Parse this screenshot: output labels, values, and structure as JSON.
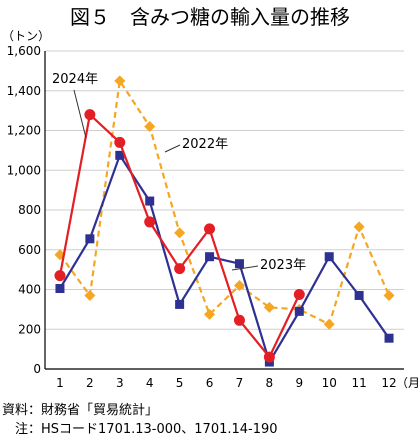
{
  "chart_data": {
    "type": "line",
    "title": "図５　含みつ糖の輸入量の推移",
    "ylabel_unit": "（トン）",
    "xlabel_unit": "（月）",
    "categories": [
      "1",
      "2",
      "3",
      "4",
      "5",
      "6",
      "7",
      "8",
      "9",
      "10",
      "11",
      "12"
    ],
    "ylim": [
      0,
      1600
    ],
    "yticks": [
      0,
      200,
      400,
      600,
      800,
      1000,
      1200,
      1400,
      1600
    ],
    "ytick_labels": [
      "0",
      "200",
      "400",
      "600",
      "800",
      "1,000",
      "1,200",
      "1,400",
      "1,600"
    ],
    "grid": true,
    "series": [
      {
        "name": "2022年",
        "color": "#f5a623",
        "marker": "diamond",
        "dashed": true,
        "values": [
          575,
          370,
          1450,
          1220,
          685,
          275,
          420,
          310,
          300,
          225,
          715,
          370
        ]
      },
      {
        "name": "2023年",
        "color": "#2e3192",
        "marker": "square",
        "dashed": false,
        "values": [
          405,
          655,
          1075,
          845,
          325,
          565,
          530,
          35,
          290,
          565,
          370,
          155
        ]
      },
      {
        "name": "2024年",
        "color": "#e31e24",
        "marker": "circle",
        "dashed": false,
        "values": [
          470,
          1280,
          1140,
          740,
          505,
          705,
          245,
          60,
          375,
          null,
          null,
          null
        ]
      }
    ],
    "annotations": [
      {
        "text": "2024年",
        "series": 2
      },
      {
        "text": "2022年",
        "series": 0
      },
      {
        "text": "2023年",
        "series": 1
      }
    ]
  },
  "source": "資料：財務省「貿易統計」",
  "note": "　注：HSコード1701.13-000、1701.14-190"
}
